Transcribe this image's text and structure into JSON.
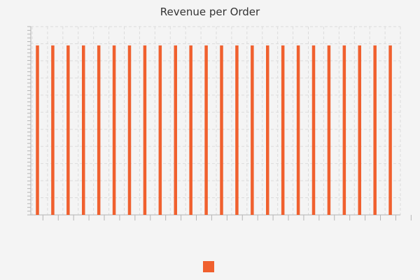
{
  "chart_data": {
    "type": "bar",
    "title": "Revenue per Order",
    "xlabel": "",
    "ylabel": "",
    "categories": [
      "",
      "",
      "",
      "",
      "",
      "",
      "",
      "",
      "",
      "",
      "",
      "",
      "",
      "",
      "",
      "",
      "",
      "",
      "",
      "",
      "",
      "",
      "",
      ""
    ],
    "series": [
      {
        "values": [
          0.9,
          0.9,
          0.9,
          0.9,
          0.9,
          0.9,
          0.9,
          0.9,
          0.9,
          0.9,
          0.9,
          0.9,
          0.9,
          0.9,
          0.9,
          0.9,
          0.9,
          0.9,
          0.9,
          0.9,
          0.9,
          0.9,
          0.9,
          0.9
        ]
      }
    ],
    "ylim": [
      0,
      1
    ],
    "grid": true,
    "legend": "bottom-center"
  },
  "colors": {
    "bar": "#f0602e",
    "background": "#f4f4f4",
    "grid": "#dcdcdc",
    "axis": "#b5b5b5"
  }
}
